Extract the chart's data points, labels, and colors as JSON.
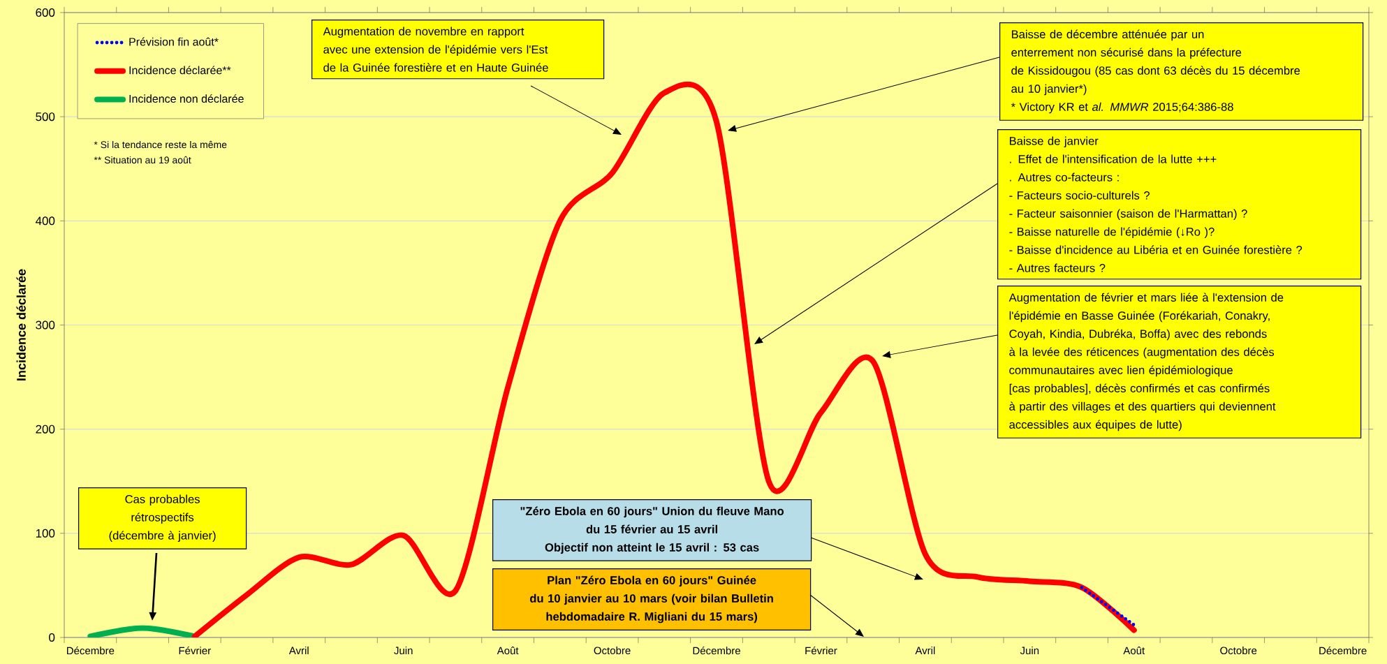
{
  "chart_data": {
    "type": "line",
    "ylabel": "Incidence déclarée",
    "categories": [
      "Décembre",
      null,
      "Février",
      null,
      "Avril",
      null,
      "Juin",
      null,
      "Août",
      null,
      "Octobre",
      null,
      "Décembre",
      null,
      "Février",
      null,
      "Avril",
      null,
      "Juin",
      null,
      "Août",
      null,
      "Octobre",
      null,
      "Décembre"
    ],
    "series": [
      {
        "name": "Prévision fin août*",
        "color": "#0000ff",
        "line_style": "dotted",
        "values": [
          null,
          null,
          null,
          null,
          null,
          null,
          null,
          null,
          null,
          null,
          null,
          null,
          null,
          null,
          null,
          null,
          null,
          null,
          null,
          48,
          12,
          null,
          null,
          null,
          null
        ]
      },
      {
        "name": "Incidence déclarée**",
        "color": "#ff0000",
        "values": [
          null,
          null,
          1,
          41,
          77,
          70,
          98,
          45,
          240,
          400,
          446,
          523,
          495,
          150,
          216,
          265,
          80,
          58,
          54,
          48,
          7,
          null,
          null,
          null,
          null
        ]
      },
      {
        "name": "Incidence non déclarée",
        "color": "#00b050",
        "values": [
          1,
          9,
          1,
          null,
          null,
          null,
          null,
          null,
          null,
          null,
          null,
          null,
          null,
          null,
          null,
          null,
          null,
          null,
          null,
          null,
          null,
          null,
          null,
          null,
          null
        ]
      }
    ],
    "ylim": [
      0,
      600
    ],
    "yticks": [
      0,
      100,
      200,
      300,
      400,
      500,
      600
    ],
    "grid": "y",
    "legend": "top left",
    "marker": "none",
    "line_style": "solid",
    "annotations": [
      "* Si la tendance reste la même",
      "** Situation au 19 août",
      "Augmentation de novembre en rapport\navec une extension de l'épidémie vers l'Est\nde la Guinée forestière et en Haute Guinée",
      "Baisse de décembre atténuée par un\nenterrement non sécurisé dans la préfecture\nde Kissidougou (85 cas dont 63 décès du 15 décembre\nau 10 janvier*)\n* Victory KR et *al.* *MMWR* 2015;64:386-88",
      "Baisse de janvier\n. Effet de l'intensification de la lutte +++\n. Autres co-facteurs :\n   - Facteurs socio-culturels  ?\n   - Facteur saisonnier (saison de l'Harmattan)  ?\n   - Baisse naturelle de l'épidémie (↓Ro )?\n   - Baisse d'incidence au Libéria et en Guinée forestière ?\n   - Autres  facteurs ?",
      "Augmentation de février et mars liée à l'extension de\nl'épidémie en Basse Guinée (Forékariah, Conakry,\nCoyah, Kindia, Dubréka, Boffa) avec  des rebonds\nà la levée des réticences (augmentation des décès\ncommunautaires avec lien épidémiologique\n[cas probables], décès confirmés et cas confirmés\nà partir des villages et des quartiers qui deviennent\naccessibles aux équipes de lutte)",
      "Cas probables\nrétrospectifs\n(décembre à janvier)",
      "\"Zéro Ebola  en 60 jours\" Union du fleuve Mano\ndu 15 février au 15 avril\nObjectif non atteint le 15 avril : 53 cas",
      "Plan \"Zéro Ebola en 60 jours\" Guinée\ndu 10 janvier au 10 mars (voir bilan Bulletin\nhebdomadaire R. Migliani du 15 mars)"
    ]
  }
}
